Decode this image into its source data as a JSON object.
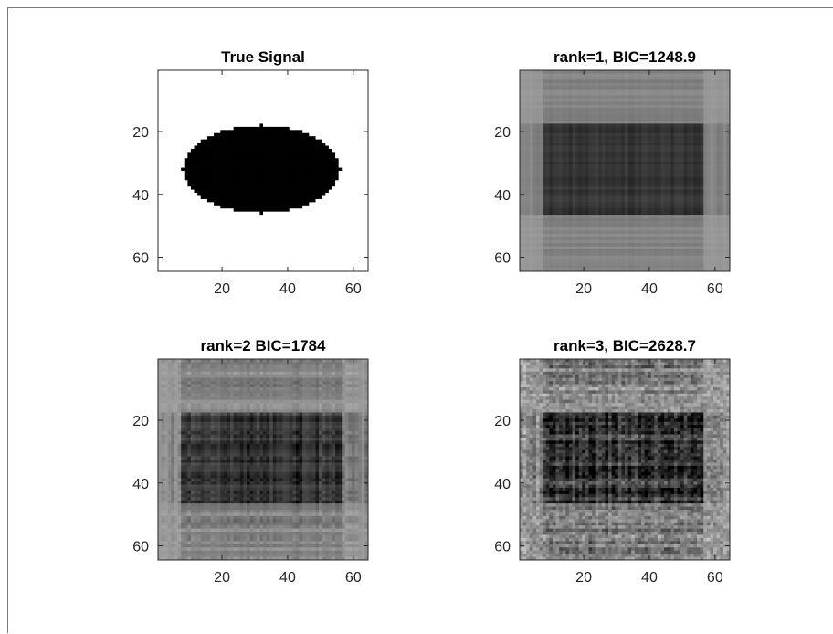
{
  "chart_data": [
    {
      "type": "heatmap",
      "title": "True Signal",
      "kind": "ellipse",
      "colormap": "gray",
      "matrix_size": [
        64,
        64
      ],
      "ellipse": {
        "center": [
          32,
          32
        ],
        "radius_x": 24,
        "radius_y": 14,
        "value": 0,
        "background": 1
      },
      "xticks": [
        20,
        40,
        60
      ],
      "yticks": [
        20,
        40,
        60
      ],
      "xlim": [
        0.5,
        64.5
      ],
      "ylim": [
        0.5,
        64.5
      ],
      "axis_direction_y": "reverse"
    },
    {
      "type": "heatmap",
      "title": "rank=1,  BIC=1248.9",
      "kind": "rank1",
      "colormap": "gray",
      "matrix_size": [
        64,
        64
      ],
      "xticks": [
        20,
        40,
        60
      ],
      "yticks": [
        20,
        40,
        60
      ],
      "xlim": [
        0.5,
        64.5
      ],
      "ylim": [
        0.5,
        64.5
      ],
      "axis_direction_y": "reverse"
    },
    {
      "type": "heatmap",
      "title": "rank=2  BIC=1784",
      "kind": "rank2",
      "colormap": "gray",
      "matrix_size": [
        64,
        64
      ],
      "xticks": [
        20,
        40,
        60
      ],
      "yticks": [
        20,
        40,
        60
      ],
      "xlim": [
        0.5,
        64.5
      ],
      "ylim": [
        0.5,
        64.5
      ],
      "axis_direction_y": "reverse"
    },
    {
      "type": "heatmap",
      "title": "rank=3,  BIC=2628.7",
      "kind": "rank3",
      "colormap": "gray",
      "matrix_size": [
        64,
        64
      ],
      "xticks": [
        20,
        40,
        60
      ],
      "yticks": [
        20,
        40,
        60
      ],
      "xlim": [
        0.5,
        64.5
      ],
      "ylim": [
        0.5,
        64.5
      ],
      "axis_direction_y": "reverse"
    }
  ]
}
